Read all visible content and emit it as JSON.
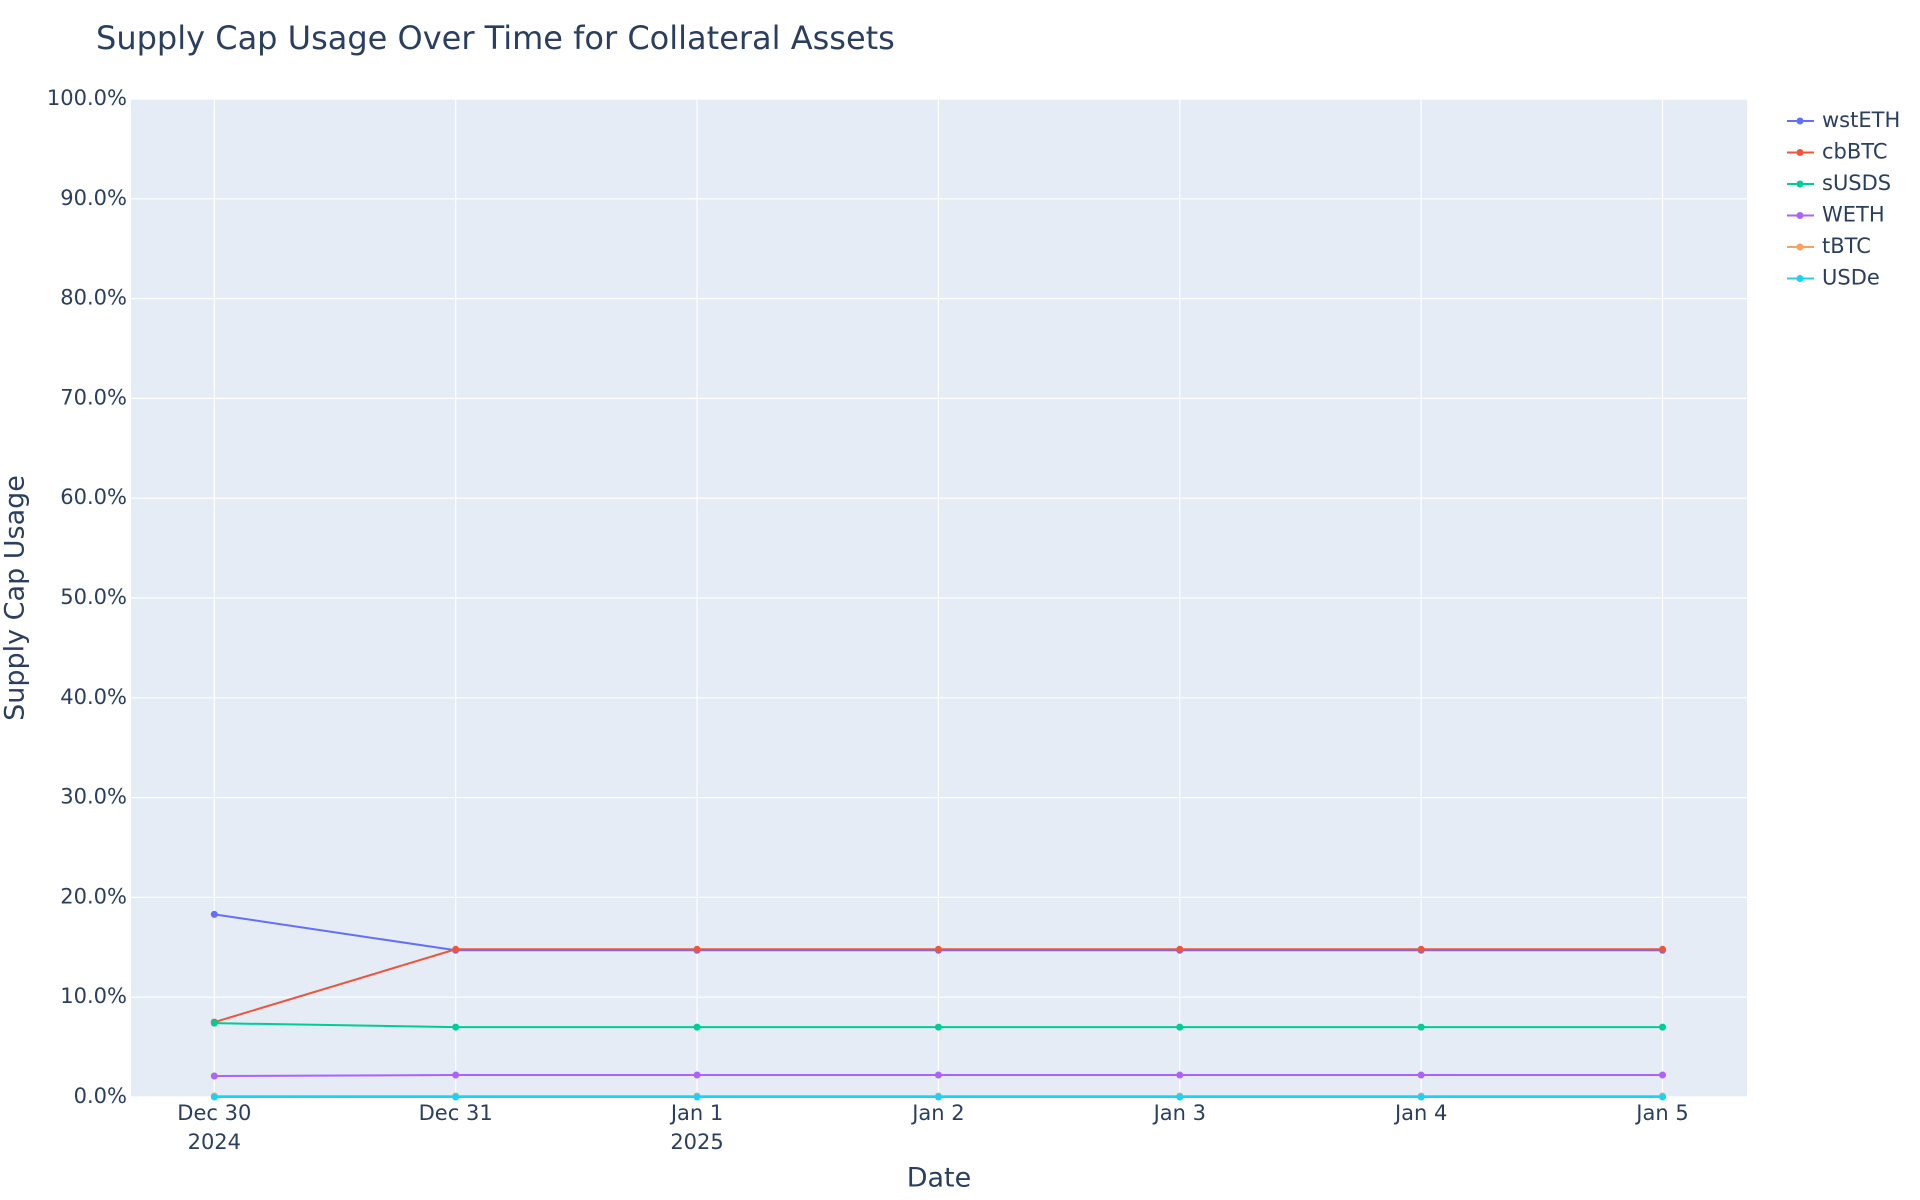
{
  "chart_data": {
    "type": "line",
    "title": "Supply Cap Usage Over Time for Collateral Assets",
    "x_label": "Date",
    "y_label": "Supply Cap Usage",
    "x": [
      "2024-12-30",
      "2024-12-31",
      "2025-01-01",
      "2025-01-02",
      "2025-01-03",
      "2025-01-04",
      "2025-01-05"
    ],
    "series": [
      {
        "name": "wstETH",
        "color": "#636efa",
        "values": [
          18.3,
          14.7,
          14.7,
          14.7,
          14.7,
          14.7,
          14.7
        ]
      },
      {
        "name": "cbBTC",
        "color": "#ef553b",
        "values": [
          7.5,
          14.8,
          14.8,
          14.8,
          14.8,
          14.8,
          14.8
        ]
      },
      {
        "name": "sUSDS",
        "color": "#00cc96",
        "values": [
          7.4,
          7.0,
          7.0,
          7.0,
          7.0,
          7.0,
          7.0
        ]
      },
      {
        "name": "WETH",
        "color": "#ab63fa",
        "values": [
          2.1,
          2.2,
          2.2,
          2.2,
          2.2,
          2.2,
          2.2
        ]
      },
      {
        "name": "tBTC",
        "color": "#ffa15a",
        "values": [
          0.1,
          0.1,
          0.1,
          0.1,
          0.1,
          0.1,
          0.1
        ]
      },
      {
        "name": "USDe",
        "color": "#19d3f3",
        "values": [
          0.0,
          0.0,
          0.0,
          0.0,
          0.0,
          0.0,
          0.0
        ]
      }
    ],
    "xlim": [
      "2024-12-29T15:43:00Z",
      "2025-01-05T08:24:00Z"
    ],
    "xticks": [
      {
        "value": "2024-12-30",
        "label": "Dec 30",
        "sublabel": "2024"
      },
      {
        "value": "2024-12-31",
        "label": "Dec 31"
      },
      {
        "value": "2025-01-01",
        "label": "Jan 1",
        "sublabel": "2025"
      },
      {
        "value": "2025-01-02",
        "label": "Jan 2"
      },
      {
        "value": "2025-01-03",
        "label": "Jan 3"
      },
      {
        "value": "2025-01-04",
        "label": "Jan 4"
      },
      {
        "value": "2025-01-05",
        "label": "Jan 5"
      }
    ],
    "ylim": [
      0,
      100
    ],
    "yticks": [
      {
        "value": 0,
        "label": "0.0%"
      },
      {
        "value": 10,
        "label": "10.0%"
      },
      {
        "value": 20,
        "label": "20.0%"
      },
      {
        "value": 30,
        "label": "30.0%"
      },
      {
        "value": 40,
        "label": "40.0%"
      },
      {
        "value": 50,
        "label": "50.0%"
      },
      {
        "value": 60,
        "label": "60.0%"
      },
      {
        "value": 70,
        "label": "70.0%"
      },
      {
        "value": 80,
        "label": "80.0%"
      },
      {
        "value": 90,
        "label": "90.0%"
      },
      {
        "value": 100,
        "label": "100.0%"
      }
    ],
    "grid": true,
    "background": "#e5ecf6",
    "legend": "right"
  }
}
